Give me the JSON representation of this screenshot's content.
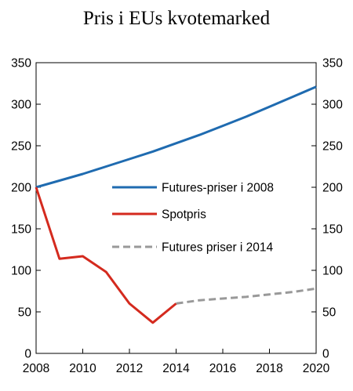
{
  "chart_data": {
    "type": "line",
    "title": "Pris i EUs kvotemarked",
    "xlabel": "",
    "ylabel": "",
    "xlim": [
      2008,
      2020
    ],
    "ylim": [
      0,
      350
    ],
    "x_ticks": [
      "2008",
      "2010",
      "2012",
      "2014",
      "2016",
      "2018",
      "2020"
    ],
    "y_ticks": [
      "0",
      "50",
      "100",
      "150",
      "200",
      "250",
      "300",
      "350"
    ],
    "grid": false,
    "legend_position": "right",
    "series": [
      {
        "name": "Futures-priser i 2008",
        "color": "#1f6bb0",
        "dash": "solid",
        "x": [
          2008,
          2009,
          2010,
          2011,
          2012,
          2013,
          2014,
          2015,
          2016,
          2017,
          2018,
          2019,
          2020
        ],
        "y": [
          200,
          208,
          216,
          225,
          234,
          243,
          253,
          263,
          274,
          285,
          297,
          309,
          321
        ]
      },
      {
        "name": "Spotpris",
        "color": "#d42a1e",
        "dash": "solid",
        "x": [
          2008,
          2009,
          2010,
          2011,
          2012,
          2013,
          2014
        ],
        "y": [
          200,
          114,
          117,
          98,
          60,
          37,
          60
        ]
      },
      {
        "name": "Futures priser i 2014",
        "color": "#999999",
        "dash": "dashed",
        "x": [
          2014,
          2015,
          2016,
          2017,
          2018,
          2019,
          2020
        ],
        "y": [
          60,
          64,
          66,
          68,
          71,
          74,
          78
        ]
      }
    ]
  }
}
